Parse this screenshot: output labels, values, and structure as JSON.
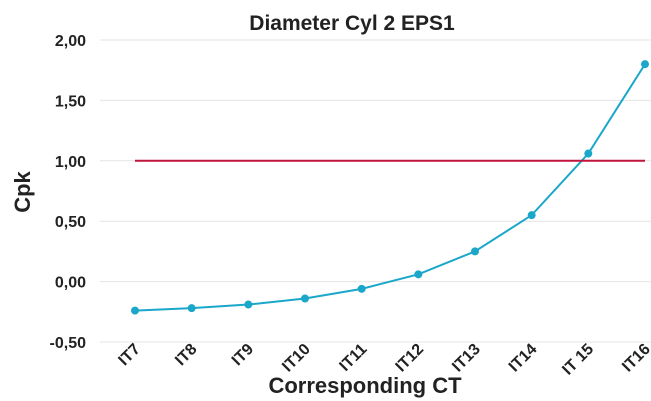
{
  "chart_data": {
    "type": "line",
    "title": "Diameter Cyl 2 EPS1",
    "x_label": "Corresponding CT",
    "y_label": "Cpk",
    "categories": [
      "IT7",
      "IT8",
      "IT9",
      "IT10",
      "IT11",
      "IT12",
      "IT13",
      "IT14",
      "IT 15",
      "IT16"
    ],
    "series": [
      {
        "color": "#1aa7c9",
        "values": [
          -0.24,
          -0.22,
          -0.19,
          -0.14,
          -0.06,
          0.06,
          0.25,
          0.55,
          1.06,
          1.8
        ],
        "markers": true
      },
      {
        "color": "#c0143c",
        "values": [
          1,
          1,
          1,
          1,
          1,
          1,
          1,
          1,
          1,
          1
        ],
        "markers": false
      }
    ],
    "ylim": [
      -0.5,
      2
    ],
    "yticks": [
      {
        "value": -0.5,
        "label": "-0,50"
      },
      {
        "value": 0,
        "label": "0,00"
      },
      {
        "value": 0.5,
        "label": "0,50"
      },
      {
        "value": 1,
        "label": "1,00"
      },
      {
        "value": 1.5,
        "label": "1,50"
      },
      {
        "value": 2,
        "label": "2,00"
      }
    ],
    "grid": true
  }
}
